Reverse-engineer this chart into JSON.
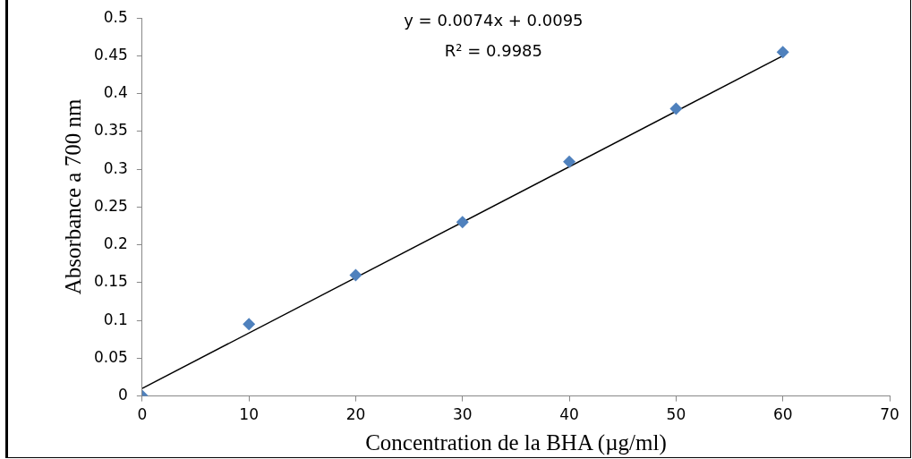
{
  "chart_data": {
    "type": "scatter",
    "xlabel": "Concentration de la BHA (µg/ml)",
    "ylabel": "Absorbance a 700 nm",
    "annotations": [
      "y = 0.0074x + 0.0095",
      "R² = 0.9985"
    ],
    "x": [
      0,
      10,
      20,
      30,
      40,
      50,
      60
    ],
    "series": [
      {
        "color": "#4f81bd",
        "values": [
          0,
          0.095,
          0.16,
          0.23,
          0.31,
          0.38,
          0.455
        ],
        "marker": "diamond"
      },
      {
        "type": "line",
        "color": "#000000",
        "x": [
          0,
          60
        ],
        "values": [
          0.01,
          0.45
        ],
        "marker": "none",
        "line_style": "solid"
      }
    ],
    "xlim": [
      0,
      70
    ],
    "xticks": [
      0,
      10,
      20,
      30,
      40,
      50,
      60,
      70
    ],
    "ylim": [
      0,
      0.5
    ],
    "yticks": [
      0,
      0.05,
      0.1,
      0.15,
      0.2,
      0.25,
      0.3,
      0.35,
      0.4,
      0.45,
      0.5
    ],
    "grid": false,
    "legend": false
  }
}
